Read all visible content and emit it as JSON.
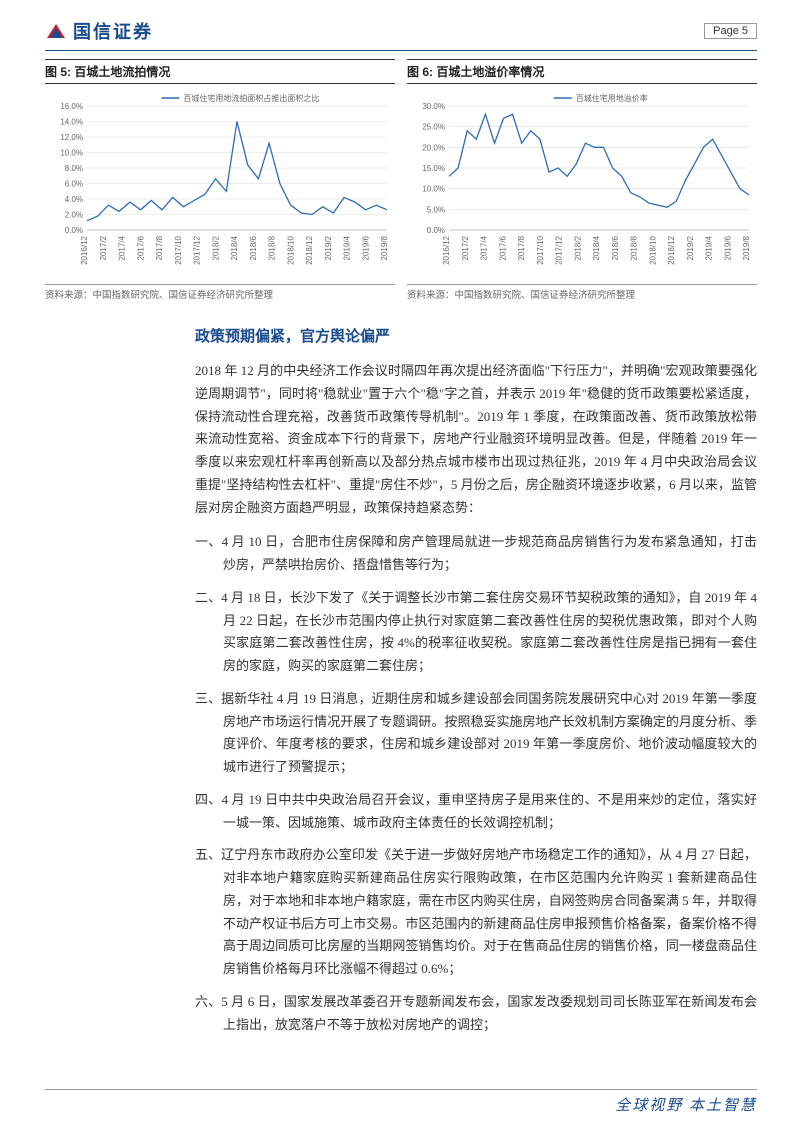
{
  "header": {
    "company": "国信证券",
    "page_label": "Page  5"
  },
  "chart5": {
    "title": "图 5: 百城土地流拍情况",
    "legend": "百城住宅用地流拍面积占推出面积之比",
    "source": "资料来源：中国指数研究院、国信证券经济研究所整理",
    "type": "line",
    "line_color": "#2e6bb0",
    "grid_color": "#d9d9d9",
    "background_color": "#ffffff",
    "text_color": "#666666",
    "x_categories": [
      "2016/12",
      "2017/2",
      "2017/4",
      "2017/6",
      "2017/8",
      "2017/10",
      "2017/12",
      "2018/2",
      "2018/4",
      "2018/6",
      "2018/8",
      "2018/10",
      "2018/12",
      "2019/2",
      "2019/4",
      "2019/6",
      "2019/8"
    ],
    "y_ticks": [
      "0.0%",
      "2.0%",
      "4.0%",
      "6.0%",
      "8.0%",
      "10.0%",
      "12.0%",
      "14.0%",
      "16.0%"
    ],
    "ylim": [
      0,
      16
    ],
    "values": [
      1.2,
      1.8,
      3.2,
      2.4,
      3.6,
      2.6,
      3.8,
      2.6,
      4.2,
      3.0,
      3.8,
      4.6,
      6.6,
      5.0,
      14.0,
      8.4,
      6.6,
      11.2,
      6.0,
      3.2,
      2.2,
      2.0,
      3.0,
      2.2,
      4.2,
      3.6,
      2.6,
      3.2,
      2.6
    ],
    "label_fontsize": 8,
    "line_width": 1.3
  },
  "chart6": {
    "title": "图 6: 百城土地溢价率情况",
    "legend": "百城住宅用地溢价率",
    "source": "资料来源：中国指数研究院、国信证券经济研究所整理",
    "type": "line",
    "line_color": "#2e6bb0",
    "grid_color": "#d9d9d9",
    "background_color": "#ffffff",
    "text_color": "#666666",
    "x_categories": [
      "2016/12",
      "2017/2",
      "2017/4",
      "2017/6",
      "2017/8",
      "2017/10",
      "2017/12",
      "2018/2",
      "2018/4",
      "2018/6",
      "2018/8",
      "2018/10",
      "2018/12",
      "2019/2",
      "2019/4",
      "2019/6",
      "2019/8"
    ],
    "y_ticks": [
      "0.0%",
      "5.0%",
      "10.0%",
      "15.0%",
      "20.0%",
      "25.0%",
      "30.0%"
    ],
    "ylim": [
      0,
      30
    ],
    "values": [
      13,
      15,
      24,
      22,
      28,
      21,
      27,
      28,
      21,
      24,
      22,
      14,
      15,
      13,
      16,
      21,
      20,
      20,
      15,
      13,
      9,
      8,
      6.5,
      6,
      5.5,
      7,
      12,
      16,
      20,
      22,
      18,
      14,
      10,
      8.5
    ],
    "label_fontsize": 8,
    "line_width": 1.3
  },
  "section_heading": "政策预期偏紧，官方舆论偏严",
  "paragraph": "2018 年 12 月的中央经济工作会议时隔四年再次提出经济面临\"下行压力\"，并明确\"宏观政策要强化逆周期调节\"，同时将\"稳就业\"置于六个\"稳\"字之首，并表示 2019 年\"稳健的货币政策要松紧适度，保持流动性合理充裕，改善货币政策传导机制\"。2019 年 1 季度，在政策面改善、货币政策放松带来流动性宽裕、资金成本下行的背景下，房地产行业融资环境明显改善。但是，伴随着 2019 年一季度以来宏观杠杆率再创新高以及部分热点城市楼市出现过热征兆，2019 年 4 月中央政治局会议重提\"坚持结构性去杠杆\"、重提\"房住不炒\"，5 月份之后，房企融资环境逐步收紧，6 月以来，监管层对房企融资方面趋严明显，政策保持趋紧态势：",
  "list": [
    "一、4 月 10 日，合肥市住房保障和房产管理局就进一步规范商品房销售行为发布紧急通知，打击炒房，严禁哄抬房价、捂盘惜售等行为；",
    "二、4 月 18 日，长沙下发了《关于调整长沙市第二套住房交易环节契税政策的通知》，自 2019 年 4 月 22 日起，在长沙市范围内停止执行对家庭第二套改善性住房的契税优惠政策，即对个人购买家庭第二套改善性住房，按 4%的税率征收契税。家庭第二套改善性住房是指已拥有一套住房的家庭，购买的家庭第二套住房；",
    "三、据新华社 4 月 19 日消息，近期住房和城乡建设部会同国务院发展研究中心对 2019 年第一季度房地产市场运行情况开展了专题调研。按照稳妥实施房地产长效机制方案确定的月度分析、季度评价、年度考核的要求，住房和城乡建设部对 2019 年第一季度房价、地价波动幅度较大的城市进行了预警提示；",
    "四、4 月 19 日中共中央政治局召开会议，重申坚持房子是用来住的、不是用来炒的定位，落实好一城一策、因城施策、城市政府主体责任的长效调控机制；",
    "五、辽宁丹东市政府办公室印发《关于进一步做好房地产市场稳定工作的通知》，从 4 月 27 日起，对非本地户籍家庭购买新建商品住房实行限购政策，在市区范围内允许购买 1 套新建商品住房，对于本地和非本地户籍家庭，需在市区内购买住房，自网签购房合同备案满 5 年，并取得不动产权证书后方可上市交易。市区范围内的新建商品住房申报预售价格备案，备案价格不得高于周边同质可比房屋的当期网签销售均价。对于在售商品住房的销售价格，同一楼盘商品住房销售价格每月环比涨幅不得超过 0.6%；",
    "六、5 月 6 日，国家发展改革委召开专题新闻发布会，国家发改委规划司司长陈亚军在新闻发布会上指出，放宽落户不等于放松对房地产的调控；"
  ],
  "footer": "全球视野  本土智慧"
}
